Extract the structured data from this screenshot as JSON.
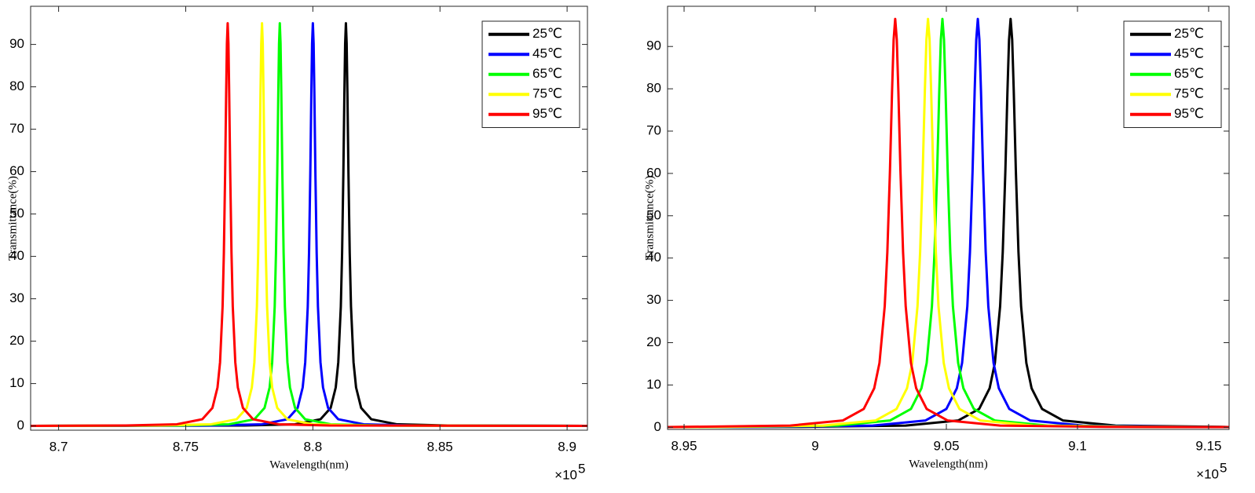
{
  "chart_data": [
    {
      "type": "line",
      "xlabel": "Wavelength(nm)",
      "ylabel": "Transmittance(%)",
      "x_multiplier": "×10",
      "x_exponent": "5",
      "xlim": [
        8.689,
        8.908
      ],
      "ylim": [
        -1,
        99
      ],
      "xticks": [
        8.7,
        8.75,
        8.8,
        8.85,
        8.9
      ],
      "yticks": [
        0,
        10,
        20,
        30,
        40,
        50,
        60,
        70,
        80,
        90
      ],
      "grid": false,
      "legend": "upper right",
      "series": [
        {
          "name": "25℃",
          "color": "#000000",
          "x": [
            8.689,
            8.773,
            8.793,
            8.803,
            8.807,
            8.809,
            8.81,
            8.811,
            8.8115,
            8.812,
            8.8124,
            8.8127,
            8.813,
            8.8133,
            8.8136,
            8.814,
            8.8145,
            8.815,
            8.816,
            8.817,
            8.819,
            8.823,
            8.833,
            8.853,
            8.908
          ],
          "values": [
            0.02,
            0.1,
            0.4,
            1.58,
            4.26,
            9.08,
            15.0,
            28.2,
            40.8,
            59.7,
            78.3,
            90.2,
            95,
            90.2,
            78.3,
            59.7,
            40.8,
            28.2,
            15.0,
            9.08,
            4.26,
            1.58,
            0.4,
            0.1,
            0.02
          ]
        },
        {
          "name": "45℃",
          "color": "#0000ff",
          "x": [
            8.689,
            8.76,
            8.78,
            8.79,
            8.794,
            8.796,
            8.797,
            8.798,
            8.7985,
            8.799,
            8.7994,
            8.7997,
            8.8,
            8.8003,
            8.8006,
            8.801,
            8.8015,
            8.802,
            8.803,
            8.804,
            8.806,
            8.81,
            8.82,
            8.84,
            8.908
          ],
          "values": [
            0.02,
            0.1,
            0.4,
            1.58,
            4.26,
            9.08,
            15.0,
            28.2,
            40.8,
            59.7,
            78.3,
            90.2,
            95,
            90.2,
            78.3,
            59.7,
            40.8,
            28.2,
            15.0,
            9.08,
            4.26,
            1.58,
            0.4,
            0.1,
            0.02
          ]
        },
        {
          "name": "65℃",
          "color": "#00ff00",
          "x": [
            8.689,
            8.747,
            8.767,
            8.777,
            8.781,
            8.783,
            8.784,
            8.785,
            8.7855,
            8.786,
            8.7864,
            8.7867,
            8.787,
            8.7873,
            8.7876,
            8.788,
            8.7885,
            8.789,
            8.79,
            8.791,
            8.793,
            8.797,
            8.807,
            8.827,
            8.908
          ],
          "values": [
            0.02,
            0.1,
            0.4,
            1.58,
            4.26,
            9.08,
            15.0,
            28.2,
            40.8,
            59.7,
            78.3,
            90.2,
            95,
            90.2,
            78.3,
            59.7,
            40.8,
            28.2,
            15.0,
            9.08,
            4.26,
            1.58,
            0.4,
            0.1,
            0.02
          ]
        },
        {
          "name": "75℃",
          "color": "#ffff00",
          "x": [
            8.689,
            8.74,
            8.76,
            8.77,
            8.774,
            8.776,
            8.777,
            8.778,
            8.7785,
            8.779,
            8.7794,
            8.7797,
            8.78,
            8.7803,
            8.7806,
            8.781,
            8.7815,
            8.782,
            8.783,
            8.784,
            8.786,
            8.79,
            8.8,
            8.82,
            8.908
          ],
          "values": [
            0.02,
            0.1,
            0.4,
            1.58,
            4.26,
            9.08,
            15.0,
            28.2,
            40.8,
            59.7,
            78.3,
            90.2,
            95,
            90.2,
            78.3,
            59.7,
            40.8,
            28.2,
            15.0,
            9.08,
            4.26,
            1.58,
            0.4,
            0.1,
            0.02
          ]
        },
        {
          "name": "95℃",
          "color": "#ff0000",
          "x": [
            8.689,
            8.7265,
            8.7465,
            8.7565,
            8.7605,
            8.7625,
            8.7635,
            8.7645,
            8.765,
            8.7655,
            8.7659,
            8.7662,
            8.7665,
            8.7668,
            8.7671,
            8.7675,
            8.768,
            8.7685,
            8.7695,
            8.7705,
            8.7725,
            8.7765,
            8.7865,
            8.8065,
            8.908
          ],
          "values": [
            0.02,
            0.1,
            0.4,
            1.58,
            4.26,
            9.08,
            15.0,
            28.2,
            40.8,
            59.7,
            78.3,
            90.2,
            95,
            90.2,
            78.3,
            59.7,
            40.8,
            28.2,
            15.0,
            9.08,
            4.26,
            1.58,
            0.4,
            0.1,
            0.02
          ]
        }
      ]
    },
    {
      "type": "line",
      "xlabel": "Wavelength(nm)",
      "ylabel": "Transmittance(%)",
      "x_multiplier": "×10",
      "x_exponent": "5",
      "xlim": [
        8.9437,
        9.1578
      ],
      "ylim": [
        -0.5,
        99.5
      ],
      "xticks": [
        8.95,
        9,
        9.05,
        9.1,
        9.15
      ],
      "yticks": [
        0,
        10,
        20,
        30,
        40,
        50,
        60,
        70,
        80,
        90
      ],
      "grid": false,
      "legend": "upper right",
      "series": [
        {
          "name": "25℃",
          "color": "#000000",
          "x": [
            8.9437,
            8.9945,
            9.0345,
            9.0545,
            9.0625,
            9.0665,
            9.0685,
            9.0705,
            9.0715,
            9.0725,
            9.0733,
            9.0739,
            9.0745,
            9.0751,
            9.0757,
            9.0765,
            9.0775,
            9.0785,
            9.0805,
            9.0825,
            9.0865,
            9.0945,
            9.1145,
            9.1545,
            9.1578
          ],
          "values": [
            0.05,
            0.1,
            0.41,
            1.6,
            4.33,
            9.22,
            15.2,
            28.6,
            41.4,
            60.6,
            79.5,
            91.6,
            96.5,
            91.6,
            79.5,
            60.6,
            41.4,
            28.6,
            15.2,
            9.22,
            4.33,
            1.6,
            0.41,
            0.1,
            0.05
          ]
        },
        {
          "name": "45℃",
          "color": "#0000ff",
          "x": [
            8.9437,
            8.982,
            9.022,
            9.042,
            9.05,
            9.054,
            9.056,
            9.058,
            9.059,
            9.06,
            9.0608,
            9.0614,
            9.062,
            9.0626,
            9.0632,
            9.064,
            9.065,
            9.066,
            9.068,
            9.07,
            9.074,
            9.082,
            9.102,
            9.142,
            9.1578
          ],
          "values": [
            0.05,
            0.1,
            0.41,
            1.6,
            4.33,
            9.22,
            15.2,
            28.6,
            41.4,
            60.6,
            79.5,
            91.6,
            96.5,
            91.6,
            79.5,
            60.6,
            41.4,
            28.6,
            15.2,
            9.22,
            4.33,
            1.6,
            0.41,
            0.1,
            0.05
          ]
        },
        {
          "name": "65℃",
          "color": "#00ff00",
          "x": [
            8.9437,
            8.9685,
            9.0085,
            9.0285,
            9.0365,
            9.0405,
            9.0425,
            9.0445,
            9.0455,
            9.0465,
            9.0473,
            9.0479,
            9.0485,
            9.0491,
            9.0497,
            9.0505,
            9.0515,
            9.0525,
            9.0545,
            9.0565,
            9.0605,
            9.0685,
            9.0885,
            9.1285,
            9.1578
          ],
          "values": [
            0.05,
            0.1,
            0.41,
            1.6,
            4.33,
            9.22,
            15.2,
            28.6,
            41.4,
            60.6,
            79.5,
            91.6,
            96.5,
            91.6,
            79.5,
            60.6,
            41.4,
            28.6,
            15.2,
            9.22,
            4.33,
            1.6,
            0.41,
            0.1,
            0.05
          ]
        },
        {
          "name": "75℃",
          "color": "#ffff00",
          "x": [
            8.9437,
            8.963,
            9.003,
            9.023,
            9.031,
            9.035,
            9.037,
            9.039,
            9.04,
            9.041,
            9.0418,
            9.0424,
            9.043,
            9.0436,
            9.0442,
            9.045,
            9.046,
            9.047,
            9.049,
            9.051,
            9.055,
            9.063,
            9.083,
            9.123,
            9.1578
          ],
          "values": [
            0.05,
            0.1,
            0.41,
            1.6,
            4.33,
            9.22,
            15.2,
            28.6,
            41.4,
            60.6,
            79.5,
            91.6,
            96.5,
            91.6,
            79.5,
            60.6,
            41.4,
            28.6,
            15.2,
            9.22,
            4.33,
            1.6,
            0.41,
            0.1,
            0.05
          ]
        },
        {
          "name": "95℃",
          "color": "#ff0000",
          "x": [
            8.9437,
            8.9505,
            8.9905,
            9.0105,
            9.0185,
            9.0225,
            9.0245,
            9.0265,
            9.0275,
            9.0285,
            9.0293,
            9.0299,
            9.0305,
            9.0311,
            9.0317,
            9.0325,
            9.0335,
            9.0345,
            9.0365,
            9.0385,
            9.0425,
            9.0505,
            9.0705,
            9.1105,
            9.1578
          ],
          "values": [
            0.05,
            0.1,
            0.41,
            1.6,
            4.33,
            9.22,
            15.2,
            28.6,
            41.4,
            60.6,
            79.5,
            91.6,
            96.5,
            91.6,
            79.5,
            60.6,
            41.4,
            28.6,
            15.2,
            9.22,
            4.33,
            1.6,
            0.41,
            0.1,
            0.05
          ]
        }
      ]
    }
  ]
}
